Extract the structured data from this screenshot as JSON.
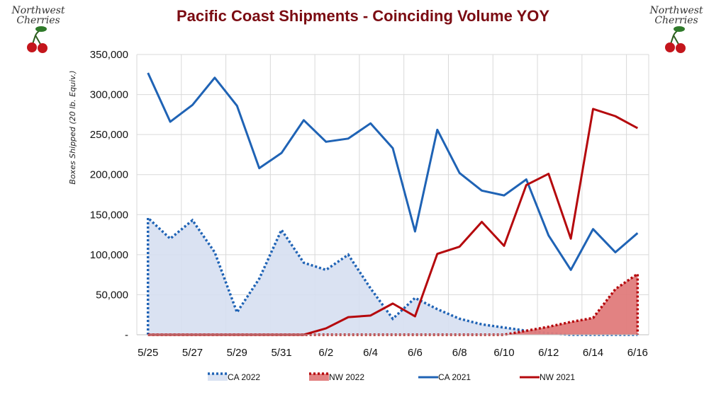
{
  "title": "Pacific Coast Shipments - Coinciding Volume YOY",
  "logo": {
    "line1": "Northwest",
    "line2": "Cherries"
  },
  "colors": {
    "blue": "#1f63b5",
    "red": "#b5090d",
    "blue_fill": "#d6dff1",
    "red_fill": "#e07b7b",
    "title": "#7b0b12"
  },
  "chart_data": {
    "type": "line",
    "ylabel": "Boxes Shipped (20 lb. Equiv.)",
    "xlabel": "",
    "ylim": [
      0,
      350000
    ],
    "yticks": [
      0,
      50000,
      100000,
      150000,
      200000,
      250000,
      300000,
      350000
    ],
    "ytick_labels": [
      "-",
      "50,000",
      "100,000",
      "150,000",
      "200,000",
      "250,000",
      "300,000",
      "350,000"
    ],
    "x": [
      "5/25",
      "5/26",
      "5/27",
      "5/28",
      "5/29",
      "5/30",
      "5/31",
      "6/1",
      "6/2",
      "6/3",
      "6/4",
      "6/5",
      "6/6",
      "6/7",
      "6/8",
      "6/9",
      "6/10",
      "6/11",
      "6/12",
      "6/13",
      "6/14",
      "6/15",
      "6/16"
    ],
    "xtick_labels": [
      "5/25",
      "5/27",
      "5/29",
      "5/31",
      "6/2",
      "6/4",
      "6/6",
      "6/8",
      "6/10",
      "6/12",
      "6/14",
      "6/16"
    ],
    "grid": true,
    "legend_position": "bottom",
    "series": [
      {
        "name": "CA 2022",
        "style": "dotted-area",
        "values": [
          146000,
          120000,
          143000,
          103000,
          28000,
          70000,
          131000,
          90000,
          81000,
          100000,
          58000,
          20000,
          46000,
          32000,
          20000,
          13000,
          9000,
          5000,
          2000,
          0,
          0,
          0,
          0
        ]
      },
      {
        "name": "NW 2022",
        "style": "dotted-area",
        "values": [
          0,
          0,
          0,
          0,
          0,
          0,
          0,
          0,
          0,
          0,
          0,
          0,
          0,
          0,
          0,
          0,
          0,
          5000,
          10000,
          16000,
          21000,
          57000,
          76000
        ]
      },
      {
        "name": "CA 2021",
        "style": "solid",
        "values": [
          327000,
          266000,
          287000,
          321000,
          286000,
          208000,
          227000,
          268000,
          241000,
          245000,
          264000,
          233000,
          129000,
          256000,
          202000,
          180000,
          174000,
          194000,
          124000,
          81000,
          132000,
          103000,
          127000
        ]
      },
      {
        "name": "NW 2021",
        "style": "solid",
        "values": [
          0,
          0,
          0,
          0,
          0,
          0,
          0,
          0,
          8000,
          22000,
          24000,
          39000,
          23000,
          101000,
          110000,
          141000,
          111000,
          187000,
          201000,
          120000,
          282000,
          273000,
          258000
        ]
      }
    ]
  }
}
